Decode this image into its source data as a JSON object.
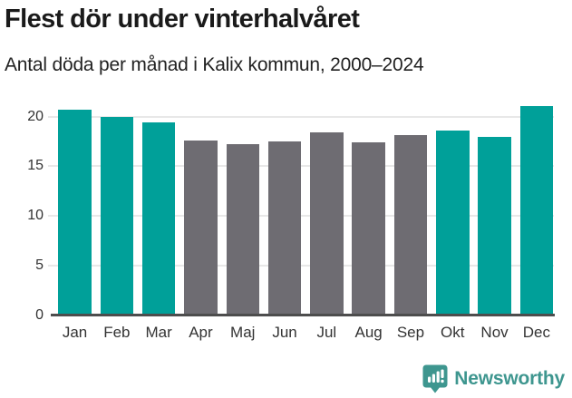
{
  "header": {
    "title": "Flest dör under vinterhalvåret",
    "subtitle": "Antal döda per månad i Kalix kommun, 2000–2024"
  },
  "chart_data": {
    "type": "bar",
    "title": "Flest dör under vinterhalvåret",
    "subtitle": "Antal döda per månad i Kalix kommun, 2000–2024",
    "categories": [
      "Jan",
      "Feb",
      "Mar",
      "Apr",
      "Maj",
      "Jun",
      "Jul",
      "Aug",
      "Sep",
      "Okt",
      "Nov",
      "Dec"
    ],
    "values": [
      20.7,
      20.0,
      19.4,
      17.6,
      17.2,
      17.5,
      18.4,
      17.4,
      18.1,
      18.6,
      18.0,
      21.1
    ],
    "highlighted_winter_months": [
      true,
      true,
      true,
      false,
      false,
      false,
      false,
      false,
      false,
      true,
      true,
      true
    ],
    "colors": {
      "winter_highlight": "#00a099",
      "summer_default": "#6e6c72"
    },
    "xlabel": "",
    "ylabel": "",
    "yticks": [
      0,
      5,
      10,
      15,
      20
    ],
    "ylim": [
      0,
      21.7
    ],
    "grid": "horizontal",
    "legend": "none"
  },
  "branding": {
    "logo_text": "Newsworthy",
    "logo_color": "#3e968f",
    "logo_icon": "speech-bubble-bar-chart-exclamation"
  }
}
